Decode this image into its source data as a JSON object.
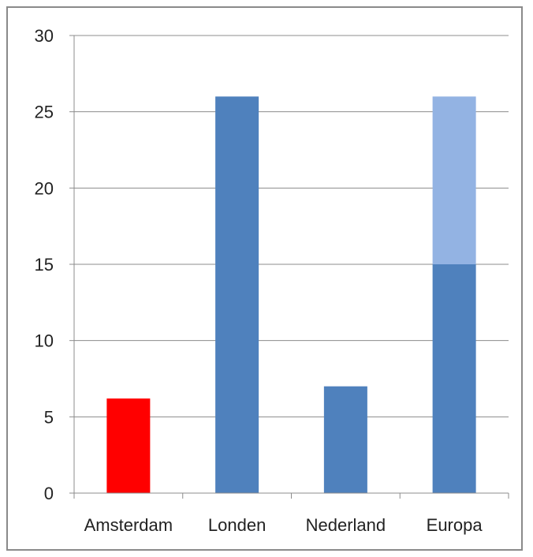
{
  "chart_data": {
    "type": "bar",
    "stacked": true,
    "categories": [
      "Amsterdam",
      "Londen",
      "Nederland",
      "Europa"
    ],
    "series": [
      {
        "values": [
          6.2,
          26,
          7,
          15
        ],
        "colors": [
          "#ff0000",
          "#4f81bd",
          "#4f81bd",
          "#4f81bd"
        ]
      },
      {
        "values": [
          0,
          0,
          0,
          11
        ],
        "colors": [
          "#93b3e3",
          "#93b3e3",
          "#93b3e3",
          "#93b3e3"
        ]
      }
    ],
    "y_ticks": [
      0,
      5,
      10,
      15,
      20,
      25,
      30
    ],
    "ylim": [
      0,
      30
    ],
    "title": "",
    "xlabel": "",
    "ylabel": "",
    "grid": true,
    "legend": "none"
  }
}
